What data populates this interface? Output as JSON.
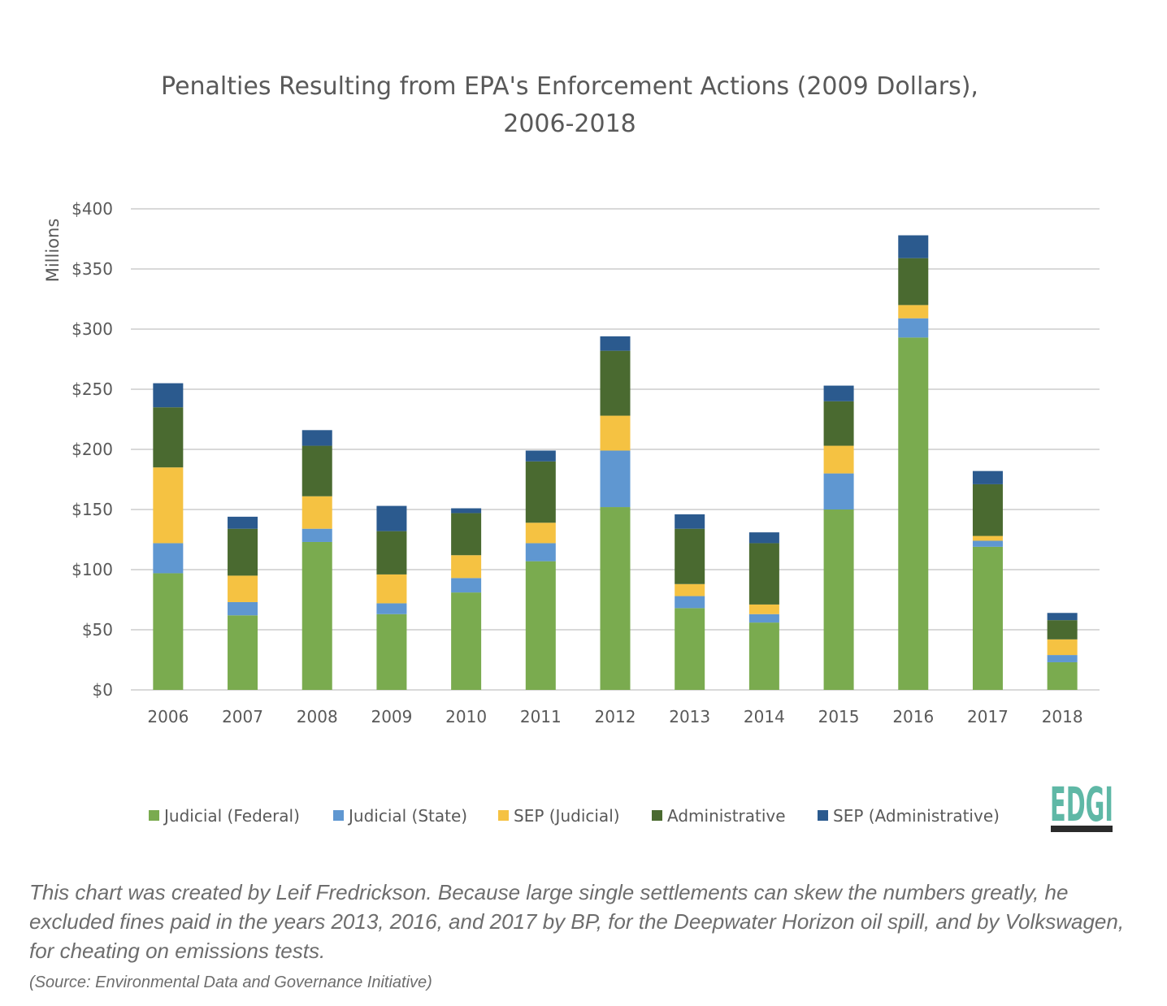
{
  "chart_data": {
    "type": "bar",
    "stacked": true,
    "title_lines": [
      "Penalties Resulting from EPA's Enforcement Actions (2009 Dollars),",
      "2006-2018"
    ],
    "xlabel": "",
    "ylabel": "Millions",
    "ylim": [
      0,
      400
    ],
    "yticks": [
      0,
      50,
      100,
      150,
      200,
      250,
      300,
      350,
      400
    ],
    "ytick_labels": [
      "$0",
      "$50",
      "$100",
      "$150",
      "$200",
      "$250",
      "$300",
      "$350",
      "$400"
    ],
    "grid": true,
    "legend_position": "bottom",
    "categories": [
      "2006",
      "2007",
      "2008",
      "2009",
      "2010",
      "2011",
      "2012",
      "2013",
      "2014",
      "2015",
      "2016",
      "2017",
      "2018"
    ],
    "series": [
      {
        "name": "Judicial (Federal)",
        "color": "#7aab4f",
        "values": [
          97,
          62,
          123,
          63,
          81,
          107,
          152,
          68,
          56,
          150,
          293,
          119,
          23
        ]
      },
      {
        "name": "Judicial (State)",
        "color": "#5f97d1",
        "values": [
          25,
          11,
          11,
          9,
          12,
          15,
          47,
          10,
          7,
          30,
          16,
          5,
          6
        ]
      },
      {
        "name": "SEP (Judicial)",
        "color": "#f5c242",
        "values": [
          63,
          22,
          27,
          24,
          19,
          17,
          29,
          10,
          8,
          23,
          11,
          4,
          13
        ]
      },
      {
        "name": "Administrative",
        "color": "#4a6a30",
        "values": [
          50,
          39,
          42,
          36,
          35,
          51,
          54,
          46,
          51,
          37,
          39,
          43,
          16
        ]
      },
      {
        "name": "SEP (Administrative)",
        "color": "#2b5a8e",
        "values": [
          20,
          10,
          13,
          21,
          4,
          9,
          12,
          12,
          9,
          13,
          19,
          11,
          6
        ]
      }
    ]
  },
  "logo": {
    "text": "EDGI",
    "color": "#5fb8a6",
    "bar_color": "#2b2b2b"
  },
  "caption": "This chart was created by Leif Fredrickson. Because large single settlements can skew the numbers greatly, he excluded fines paid in the years 2013, 2016, and 2017 by BP, for the Deepwater Horizon oil spill, and by Volkswagen, for cheating on emissions tests.",
  "source": "(Source: Environmental Data and Governance Initiative)"
}
